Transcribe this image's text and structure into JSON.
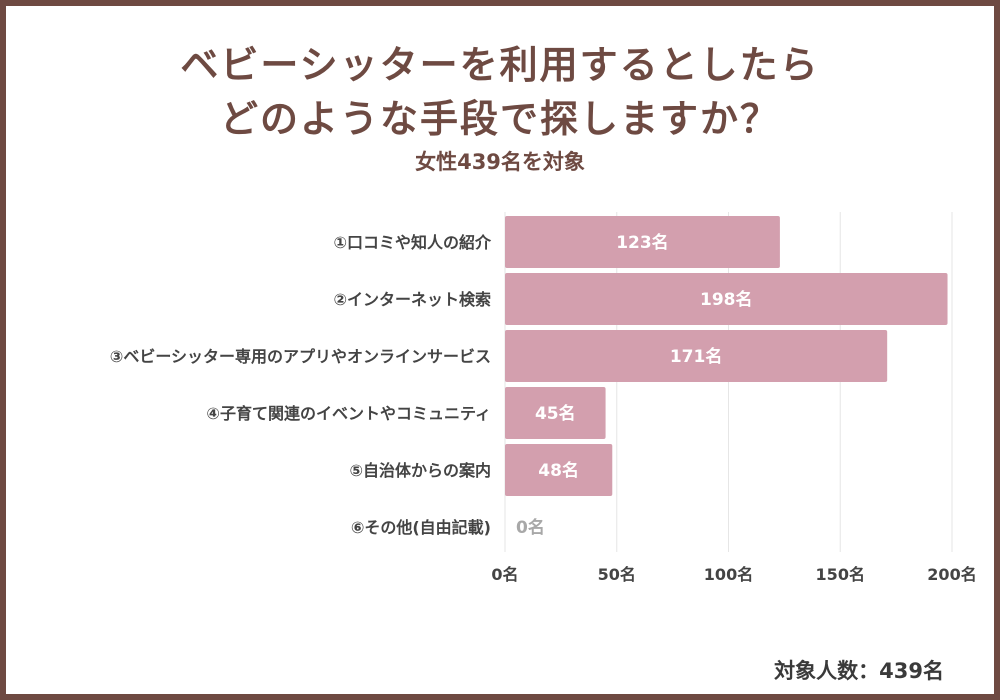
{
  "title_line1": "ベビーシッターを利用するとしたら",
  "title_line2": "どのような手段で探しますか？",
  "subtitle": "女性439名を対象",
  "footer": "対象人数：439名",
  "colors": {
    "bar": "#d39fae",
    "frame": "#6e4a42",
    "grid": "#e6e6e6",
    "text": "#444444"
  },
  "chart_data": {
    "type": "bar",
    "orientation": "horizontal",
    "categories": [
      "①口コミや知人の紹介",
      "②インターネット検索",
      "③ベビーシッター専用のアプリやオンラインサービス",
      "④子育て関連のイベントやコミュニティ",
      "⑤自治体からの案内",
      "⑥その他(自由記載)"
    ],
    "values": [
      123,
      198,
      171,
      45,
      48,
      0
    ],
    "value_labels": [
      "123名",
      "198名",
      "171名",
      "45名",
      "48名",
      "0名"
    ],
    "xlim": [
      0,
      200
    ],
    "ticks": [
      0,
      50,
      100,
      150,
      200
    ],
    "tick_labels": [
      "0名",
      "50名",
      "100名",
      "150名",
      "200名"
    ],
    "grid": true
  }
}
